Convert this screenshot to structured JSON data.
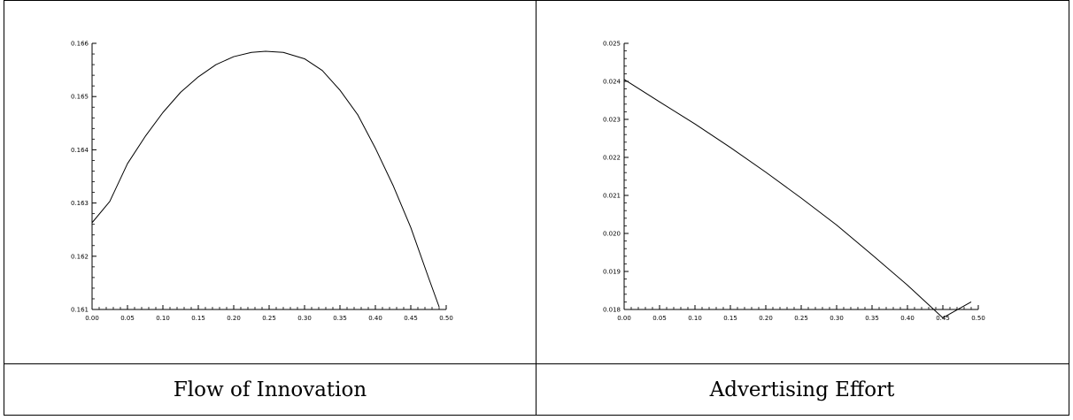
{
  "chart_data": [
    {
      "type": "line",
      "title": "Flow of Innovation",
      "xlim": [
        0.0,
        0.5
      ],
      "ylim": [
        0.161,
        0.166
      ],
      "xticks": [
        "0.00",
        "0.05",
        "0.10",
        "0.15",
        "0.20",
        "0.25",
        "0.30",
        "0.35",
        "0.40",
        "0.45",
        "0.50"
      ],
      "yticks": [
        "0.161",
        "0.162",
        "0.163",
        "0.164",
        "0.165",
        "0.166"
      ],
      "grid": false,
      "series": [
        {
          "x": [
            0.0,
            0.025,
            0.05,
            0.075,
            0.1,
            0.125,
            0.15,
            0.175,
            0.2,
            0.225,
            0.245,
            0.27,
            0.3,
            0.325,
            0.35,
            0.375,
            0.4,
            0.425,
            0.45,
            0.475,
            0.49
          ],
          "y": [
            0.16263,
            0.16303,
            0.16374,
            0.16425,
            0.1647,
            0.16508,
            0.16537,
            0.1656,
            0.16575,
            0.16583,
            0.16585,
            0.16583,
            0.16571,
            0.16549,
            0.16512,
            0.16466,
            0.16403,
            0.16333,
            0.16254,
            0.1616,
            0.16105
          ]
        }
      ]
    },
    {
      "type": "line",
      "title": "Advertising Effort",
      "xlim": [
        0.0,
        0.5
      ],
      "ylim": [
        0.018,
        0.025
      ],
      "xticks": [
        "0.00",
        "0.05",
        "0.10",
        "0.15",
        "0.20",
        "0.25",
        "0.30",
        "0.35",
        "0.40",
        "0.45",
        "0.50"
      ],
      "yticks": [
        "0.018",
        "0.019",
        "0.020",
        "0.021",
        "0.022",
        "0.023",
        "0.024",
        "0.025"
      ],
      "grid": false,
      "series": [
        {
          "x": [
            0.0,
            0.05,
            0.1,
            0.15,
            0.2,
            0.25,
            0.3,
            0.35,
            0.4,
            0.45,
            0.49
          ],
          "y": [
            0.02405,
            0.02346,
            0.02288,
            0.02226,
            0.02161,
            0.02093,
            0.02022,
            0.01944,
            0.01864,
            0.01778,
            0.0182
          ]
        }
      ]
    }
  ]
}
